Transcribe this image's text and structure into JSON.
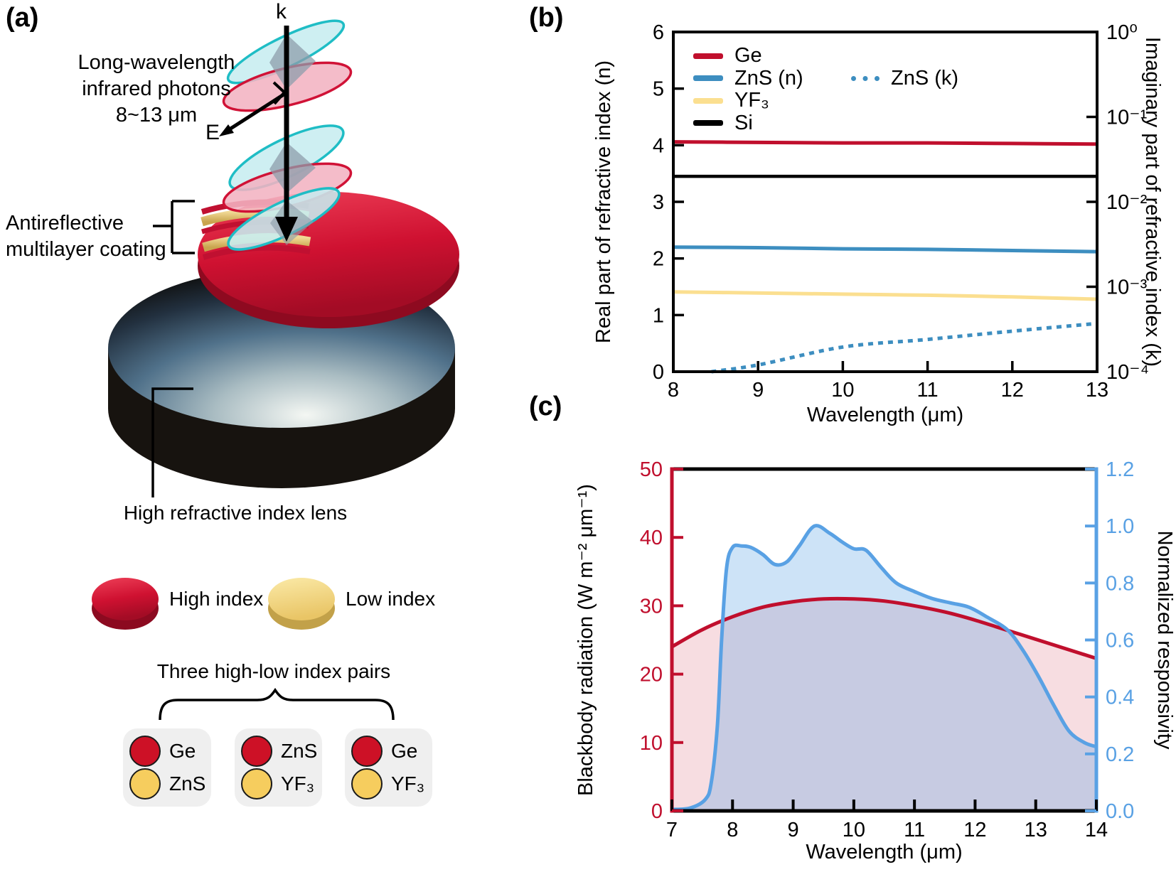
{
  "panel_a": {
    "label": "(a)",
    "photon_caption": {
      "line1": "Long-wavelength",
      "line2": "infrared photons",
      "line3": "8~13 μm"
    },
    "k_label": "k",
    "e_label": "E",
    "coating_label": {
      "line1": "Antireflective",
      "line2": "multilayer coating"
    },
    "lens_label": "High refractive index lens",
    "index_legend": {
      "high": "High index",
      "low": "Low index"
    },
    "pairs_title": "Three high-low index pairs",
    "pairs": [
      {
        "high": "Ge",
        "low": "ZnS"
      },
      {
        "high": "ZnS",
        "low": "YF₃"
      },
      {
        "high": "Ge",
        "low": "YF₃"
      }
    ],
    "colors": {
      "high_index": "#cd1126",
      "low_index": "#f6cd5e"
    }
  },
  "chart_data": [
    {
      "panel": "(b)",
      "type": "line",
      "xlabel": "Wavelength (μm)",
      "x_range": [
        8,
        13
      ],
      "x_ticks": [
        8,
        9,
        10,
        11,
        12,
        13
      ],
      "left_axis": {
        "label": "Real part of refractive index (n)",
        "range": [
          0,
          6
        ],
        "ticks": [
          0,
          1,
          2,
          3,
          4,
          5,
          6
        ],
        "color": "#000000",
        "label_color": "#000000"
      },
      "right_axis": {
        "label": "Imaginary part of refractive index (k)",
        "scale": "log",
        "range": [
          0.0001,
          1
        ],
        "ticks": [
          {
            "v": 1,
            "t": "10⁰"
          },
          {
            "v": 0.1,
            "t": "10⁻¹"
          },
          {
            "v": 0.01,
            "t": "10⁻²"
          },
          {
            "v": 0.001,
            "t": "10⁻³"
          },
          {
            "v": 0.0001,
            "t": "10⁻⁴"
          }
        ],
        "color": "#000000",
        "label_color": "#000000"
      },
      "legend_position": "upper left",
      "series": [
        {
          "name": "Ge",
          "axis": "left",
          "color": "#c00f2d",
          "width": 5,
          "x": [
            8,
            9,
            10,
            11,
            12,
            13
          ],
          "y": [
            4.06,
            4.05,
            4.04,
            4.04,
            4.03,
            4.02
          ]
        },
        {
          "name": "ZnS (n)",
          "axis": "left",
          "color": "#3d8ec0",
          "width": 5,
          "x": [
            8,
            9,
            10,
            11,
            12,
            13
          ],
          "y": [
            2.2,
            2.19,
            2.17,
            2.16,
            2.14,
            2.12
          ]
        },
        {
          "name": "YF₃",
          "axis": "left",
          "color": "#fbdf90",
          "width": 5,
          "x": [
            8,
            9,
            10,
            11,
            12,
            13
          ],
          "y": [
            1.41,
            1.39,
            1.37,
            1.35,
            1.32,
            1.28
          ]
        },
        {
          "name": "Si",
          "axis": "left",
          "color": "#000000",
          "width": 4.5,
          "x": [
            8,
            13
          ],
          "y": [
            3.45,
            3.45
          ]
        },
        {
          "name": "ZnS (k)",
          "axis": "right",
          "color": "#3d8ec0",
          "width": 5,
          "dotted": true,
          "x": [
            8.45,
            9,
            10,
            11,
            12,
            13
          ],
          "y": [
            0.0001,
            0.00012,
            0.000195,
            0.00024,
            0.0003,
            0.00037
          ]
        }
      ]
    },
    {
      "panel": "(c)",
      "type": "area",
      "xlabel": "Wavelength (μm)",
      "x_range": [
        7,
        14
      ],
      "x_ticks": [
        7,
        8,
        9,
        10,
        11,
        12,
        13,
        14
      ],
      "left_axis": {
        "label": "Blackbody radiation (W m⁻² μm⁻¹)",
        "range": [
          0,
          50
        ],
        "ticks": [
          0,
          10,
          20,
          30,
          40,
          50
        ],
        "color": "#c00f2d",
        "label_color": "#000000"
      },
      "right_axis": {
        "label": "Normalized responsivity",
        "range": [
          0,
          1.2
        ],
        "ticks": [
          {
            "v": 0.0,
            "t": "0.0"
          },
          {
            "v": 0.2,
            "t": "0.2"
          },
          {
            "v": 0.4,
            "t": "0.4"
          },
          {
            "v": 0.6,
            "t": "0.6"
          },
          {
            "v": 0.8,
            "t": "0.8"
          },
          {
            "v": 1.0,
            "t": "1.0"
          },
          {
            "v": 1.2,
            "t": "1.2"
          }
        ],
        "color": "#59a1e4",
        "label_color": "#000000"
      },
      "series": [
        {
          "name": "Blackbody radiation",
          "axis": "left",
          "color": "#c00f2d",
          "width": 5,
          "fill": "rgba(200,16,46,0.14)",
          "x": [
            7,
            7.5,
            8,
            8.5,
            9,
            9.5,
            10,
            10.5,
            11,
            11.5,
            12,
            12.5,
            13,
            13.5,
            14
          ],
          "y": [
            24.0,
            26.5,
            28.4,
            29.8,
            30.6,
            31.0,
            31.0,
            30.7,
            30.0,
            29.1,
            27.9,
            26.5,
            25.1,
            23.7,
            22.3
          ]
        },
        {
          "name": "Normalized responsivity",
          "axis": "right",
          "color": "#59a1e4",
          "width": 5,
          "fill": "rgba(89,161,228,0.30)",
          "x": [
            7,
            7.3,
            7.55,
            7.65,
            7.75,
            7.82,
            7.9,
            8.0,
            8.15,
            8.3,
            8.5,
            8.7,
            8.9,
            9.1,
            9.35,
            9.6,
            9.8,
            10.0,
            10.2,
            10.45,
            10.7,
            11.0,
            11.3,
            11.6,
            11.9,
            12.2,
            12.54,
            12.8,
            13.05,
            13.3,
            13.55,
            13.8,
            14
          ],
          "y": [
            0.005,
            0.01,
            0.04,
            0.1,
            0.3,
            0.6,
            0.85,
            0.925,
            0.93,
            0.925,
            0.9,
            0.865,
            0.875,
            0.93,
            1.0,
            0.975,
            0.945,
            0.92,
            0.915,
            0.855,
            0.8,
            0.77,
            0.745,
            0.73,
            0.715,
            0.68,
            0.634,
            0.56,
            0.47,
            0.37,
            0.28,
            0.24,
            0.225
          ]
        }
      ]
    }
  ]
}
